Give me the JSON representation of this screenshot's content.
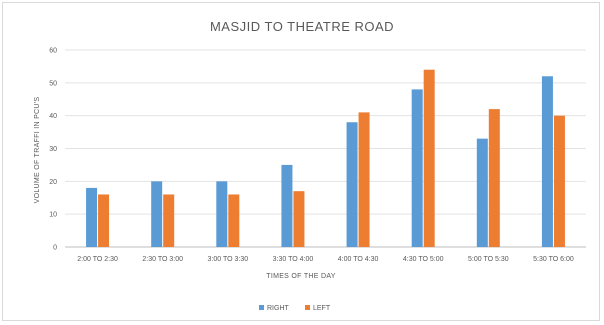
{
  "chart_data": {
    "type": "bar",
    "title": "MASJID TO THEATRE ROAD",
    "xlabel": "TIMES OF THE DAY",
    "ylabel": "VOLUME OF TRAFFI IN PCU'S",
    "ylim": [
      0,
      60
    ],
    "yticks": [
      0,
      10,
      20,
      30,
      40,
      50,
      60
    ],
    "grid": true,
    "legend_position": "bottom",
    "categories": [
      "2:00 TO 2:30",
      "2:30 TO 3:00",
      "3:00 TO 3:30",
      "3:30 TO 4:00",
      "4:00 TO 4:30",
      "4:30 TO 5:00",
      "5:00 TO 5:30",
      "5:30 TO 6:00"
    ],
    "series": [
      {
        "name": "RIGHT",
        "color": "#5b9bd5",
        "values": [
          18,
          20,
          20,
          25,
          38,
          48,
          33,
          52
        ]
      },
      {
        "name": "LEFT",
        "color": "#ed7d31",
        "values": [
          16,
          16,
          16,
          17,
          41,
          54,
          42,
          40
        ]
      }
    ]
  }
}
